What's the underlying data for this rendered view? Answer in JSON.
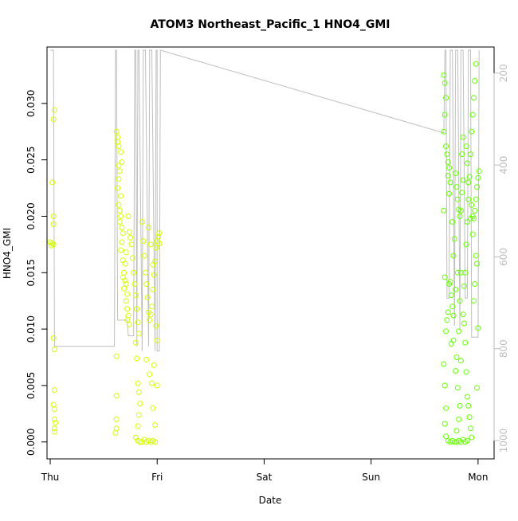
{
  "chart_data": {
    "type": "scatter",
    "title": "ATOM3 Northeast_Pacific_1 HNO4_GMI",
    "xlabel": "Date",
    "ylabel": "HNO4_GMI",
    "x_ticks": [
      "Thu",
      "Fri",
      "Sat",
      "Sun",
      "Mon"
    ],
    "y_ticks": [
      "0.000",
      "0.005",
      "0.010",
      "0.015",
      "0.020",
      "0.025",
      "0.030"
    ],
    "y_right_ticks": [
      "200",
      "400",
      "600",
      "800",
      "1000"
    ],
    "xlim": [
      -0.03,
      4.15
    ],
    "ylim": [
      -0.0015,
      0.035
    ],
    "y_right_lim": [
      1040,
      143
    ],
    "y_right_reversed": true,
    "grid": false,
    "point_colors": [
      "#d2ff00",
      "#66ff00"
    ],
    "profile_color": "#bebebe",
    "series": [
      {
        "name": "",
        "points": [
          [
            0.0,
            0.0177
          ],
          [
            0.01,
            0.0174
          ],
          [
            0.02,
            0.0176
          ],
          [
            0.03,
            0.0175
          ],
          [
            0.02,
            0.023
          ],
          [
            0.03,
            0.02
          ],
          [
            0.04,
            0.0294
          ],
          [
            0.03,
            0.0286
          ],
          [
            0.03,
            0.0193
          ],
          [
            0.03,
            0.0092
          ],
          [
            0.04,
            0.0082
          ],
          [
            0.04,
            0.0046
          ],
          [
            0.03,
            0.0033
          ],
          [
            0.04,
            0.0029
          ],
          [
            0.04,
            0.002
          ],
          [
            0.05,
            0.0017
          ],
          [
            0.04,
            0.0012
          ],
          [
            0.04,
            0.0009
          ],
          [
            0.62,
            0.0275
          ],
          [
            0.63,
            0.027
          ],
          [
            0.64,
            0.0262
          ],
          [
            0.66,
            0.0257
          ],
          [
            0.67,
            0.0248
          ],
          [
            0.65,
            0.024
          ],
          [
            0.64,
            0.0233
          ],
          [
            0.63,
            0.0225
          ],
          [
            0.66,
            0.0218
          ],
          [
            0.64,
            0.021
          ],
          [
            0.66,
            0.02
          ],
          [
            0.65,
            0.0195
          ],
          [
            0.67,
            0.019
          ],
          [
            0.68,
            0.0185
          ],
          [
            0.67,
            0.0177
          ],
          [
            0.66,
            0.017
          ],
          [
            0.68,
            0.0161
          ],
          [
            0.69,
            0.015
          ],
          [
            0.68,
            0.0146
          ],
          [
            0.7,
            0.0143
          ],
          [
            0.71,
            0.014
          ],
          [
            0.69,
            0.0136
          ],
          [
            0.72,
            0.0131
          ],
          [
            0.71,
            0.0125
          ],
          [
            0.72,
            0.0118
          ],
          [
            0.73,
            0.0112
          ],
          [
            0.72,
            0.0108
          ],
          [
            0.74,
            0.0104
          ],
          [
            0.62,
            0.0076
          ],
          [
            0.62,
            0.0041
          ],
          [
            0.62,
            0.002
          ],
          [
            0.62,
            0.0012
          ],
          [
            0.61,
            0.0008
          ],
          [
            0.63,
            0.0266
          ],
          [
            0.64,
            0.0245
          ],
          [
            0.65,
            0.0205
          ],
          [
            0.7,
            0.0158
          ],
          [
            0.71,
            0.0168
          ],
          [
            0.73,
            0.02
          ],
          [
            0.74,
            0.0186
          ],
          [
            0.75,
            0.0181
          ],
          [
            0.76,
            0.0175
          ],
          [
            0.77,
            0.0163
          ],
          [
            0.78,
            0.015
          ],
          [
            0.79,
            0.014
          ],
          [
            0.8,
            0.013
          ],
          [
            0.81,
            0.0118
          ],
          [
            0.82,
            0.0106
          ],
          [
            0.83,
            0.0096
          ],
          [
            0.8,
            0.0088
          ],
          [
            0.81,
            0.0074
          ],
          [
            0.82,
            0.0052
          ],
          [
            0.83,
            0.0044
          ],
          [
            0.84,
            0.0034
          ],
          [
            0.83,
            0.0024
          ],
          [
            0.82,
            0.0014
          ],
          [
            0.8,
            0.0004
          ],
          [
            0.82,
            0.0001
          ],
          [
            0.84,
            0.0
          ],
          [
            0.86,
            0.0
          ],
          [
            0.88,
            0.0002
          ],
          [
            0.9,
            0.0
          ],
          [
            0.92,
            0.0001
          ],
          [
            0.94,
            0.0
          ],
          [
            0.96,
            0.0001
          ],
          [
            0.98,
            0.0
          ],
          [
            0.86,
            0.0195
          ],
          [
            0.87,
            0.0178
          ],
          [
            0.88,
            0.0165
          ],
          [
            0.89,
            0.015
          ],
          [
            0.9,
            0.014
          ],
          [
            0.91,
            0.0128
          ],
          [
            0.92,
            0.0115
          ],
          [
            0.93,
            0.0108
          ],
          [
            0.94,
            0.0113
          ],
          [
            0.95,
            0.012
          ],
          [
            0.96,
            0.0135
          ],
          [
            0.97,
            0.0148
          ],
          [
            0.98,
            0.016
          ],
          [
            0.99,
            0.0172
          ],
          [
            1.0,
            0.0178
          ],
          [
            1.01,
            0.0182
          ],
          [
            1.02,
            0.0185
          ],
          [
            1.02,
            0.0176
          ],
          [
            0.93,
            0.006
          ],
          [
            0.95,
            0.0052
          ],
          [
            0.96,
            0.003
          ],
          [
            0.98,
            0.0015
          ],
          [
            0.92,
            0.019
          ],
          [
            0.94,
            0.0175
          ],
          [
            0.96,
            0.0157
          ],
          [
            0.99,
            0.0103
          ],
          [
            1.0,
            0.009
          ],
          [
            0.9,
            0.0073
          ],
          [
            0.97,
            0.0068
          ],
          [
            1.0,
            0.005
          ]
        ]
      },
      {
        "name": "",
        "points": [
          [
            3.68,
            0.0325
          ],
          [
            3.69,
            0.0318
          ],
          [
            3.7,
            0.0305
          ],
          [
            3.69,
            0.029
          ],
          [
            3.68,
            0.0275
          ],
          [
            3.7,
            0.0262
          ],
          [
            3.71,
            0.0255
          ],
          [
            3.72,
            0.0248
          ],
          [
            3.73,
            0.0243
          ],
          [
            3.72,
            0.0236
          ],
          [
            3.74,
            0.023
          ],
          [
            3.73,
            0.022
          ],
          [
            3.68,
            0.0205
          ],
          [
            3.69,
            0.0146
          ],
          [
            3.7,
            0.0098
          ],
          [
            3.68,
            0.0069
          ],
          [
            3.69,
            0.005
          ],
          [
            3.7,
            0.003
          ],
          [
            3.69,
            0.0016
          ],
          [
            3.7,
            0.0005
          ],
          [
            3.72,
            0.0001
          ],
          [
            3.74,
            0.0
          ],
          [
            3.76,
            0.0001
          ],
          [
            3.78,
            0.0
          ],
          [
            3.8,
            0.0
          ],
          [
            3.82,
            0.0001
          ],
          [
            3.84,
            0.0
          ],
          [
            3.86,
            0.0002
          ],
          [
            3.88,
            0.0
          ],
          [
            3.9,
            0.0001
          ],
          [
            3.74,
            0.0142
          ],
          [
            3.75,
            0.013
          ],
          [
            3.76,
            0.012
          ],
          [
            3.77,
            0.0112
          ],
          [
            3.75,
            0.0087
          ],
          [
            3.77,
            0.009
          ],
          [
            3.79,
            0.0238
          ],
          [
            3.8,
            0.0226
          ],
          [
            3.81,
            0.0215
          ],
          [
            3.82,
            0.0206
          ],
          [
            3.83,
            0.02
          ],
          [
            3.84,
            0.0205
          ],
          [
            3.85,
            0.0221
          ],
          [
            3.86,
            0.0232
          ],
          [
            3.85,
            0.0255
          ],
          [
            3.86,
            0.027
          ],
          [
            3.84,
            0.015
          ],
          [
            3.83,
            0.0125
          ],
          [
            3.82,
            0.0098
          ],
          [
            3.8,
            0.0075
          ],
          [
            3.79,
            0.0063
          ],
          [
            3.81,
            0.0048
          ],
          [
            3.83,
            0.0032
          ],
          [
            3.82,
            0.002
          ],
          [
            3.8,
            0.001
          ],
          [
            3.84,
            0.0072
          ],
          [
            3.87,
            0.0138
          ],
          [
            3.88,
            0.015
          ],
          [
            3.89,
            0.0175
          ],
          [
            3.9,
            0.0195
          ],
          [
            3.91,
            0.0215
          ],
          [
            3.92,
            0.0235
          ],
          [
            3.93,
            0.0255
          ],
          [
            3.94,
            0.0275
          ],
          [
            3.95,
            0.029
          ],
          [
            3.96,
            0.0305
          ],
          [
            3.97,
            0.032
          ],
          [
            3.98,
            0.0335
          ],
          [
            3.94,
            0.021
          ],
          [
            3.95,
            0.02
          ],
          [
            3.96,
            0.0198
          ],
          [
            3.97,
            0.0205
          ],
          [
            3.98,
            0.0215
          ],
          [
            3.99,
            0.0226
          ],
          [
            4.0,
            0.0234
          ],
          [
            4.01,
            0.024
          ],
          [
            3.98,
            0.0165
          ],
          [
            3.99,
            0.0158
          ],
          [
            4.0,
            0.0101
          ],
          [
            3.99,
            0.0048
          ],
          [
            3.9,
            0.004
          ],
          [
            3.91,
            0.0032
          ],
          [
            3.92,
            0.0022
          ],
          [
            3.93,
            0.0012
          ],
          [
            3.94,
            0.0004
          ],
          [
            3.89,
            0.0062
          ],
          [
            3.88,
            0.0088
          ],
          [
            3.87,
            0.0105
          ],
          [
            3.86,
            0.0113
          ],
          [
            3.93,
            0.0198
          ],
          [
            3.9,
            0.0247
          ],
          [
            3.89,
            0.0262
          ],
          [
            3.91,
            0.023
          ],
          [
            3.95,
            0.0184
          ],
          [
            3.97,
            0.014
          ],
          [
            3.96,
            0.0125
          ],
          [
            3.71,
            0.0108
          ],
          [
            3.72,
            0.0115
          ],
          [
            3.73,
            0.014
          ],
          [
            3.78,
            0.018
          ],
          [
            3.76,
            0.0195
          ],
          [
            3.77,
            0.0165
          ],
          [
            3.81,
            0.015
          ],
          [
            3.79,
            0.0135
          ]
        ]
      }
    ],
    "profile": [
      [
        0.0,
        150
      ],
      [
        0.03,
        150
      ],
      [
        0.04,
        795
      ],
      [
        0.6,
        795
      ],
      [
        0.61,
        150
      ],
      [
        0.62,
        150
      ],
      [
        0.63,
        738
      ],
      [
        0.72,
        738
      ],
      [
        0.73,
        772
      ],
      [
        0.78,
        772
      ],
      [
        0.79,
        150
      ],
      [
        0.8,
        150
      ],
      [
        0.81,
        795
      ],
      [
        0.82,
        150
      ],
      [
        0.83,
        150
      ],
      [
        0.86,
        805
      ],
      [
        0.87,
        150
      ],
      [
        0.89,
        150
      ],
      [
        0.92,
        795
      ],
      [
        0.93,
        150
      ],
      [
        0.95,
        150
      ],
      [
        0.98,
        805
      ],
      [
        0.99,
        150
      ],
      [
        1.0,
        150
      ],
      [
        1.0,
        805
      ],
      [
        1.02,
        805
      ],
      [
        1.03,
        150
      ],
      [
        3.68,
        330
      ],
      [
        3.69,
        150
      ],
      [
        3.7,
        150
      ],
      [
        3.71,
        690
      ],
      [
        3.73,
        690
      ],
      [
        3.74,
        150
      ],
      [
        3.76,
        150
      ],
      [
        3.78,
        750
      ],
      [
        3.79,
        150
      ],
      [
        3.81,
        150
      ],
      [
        3.83,
        760
      ],
      [
        3.84,
        150
      ],
      [
        3.86,
        150
      ],
      [
        3.88,
        690
      ],
      [
        3.9,
        690
      ],
      [
        3.91,
        150
      ],
      [
        3.93,
        150
      ],
      [
        3.94,
        775
      ],
      [
        4.0,
        775
      ],
      [
        4.01,
        150
      ]
    ]
  }
}
